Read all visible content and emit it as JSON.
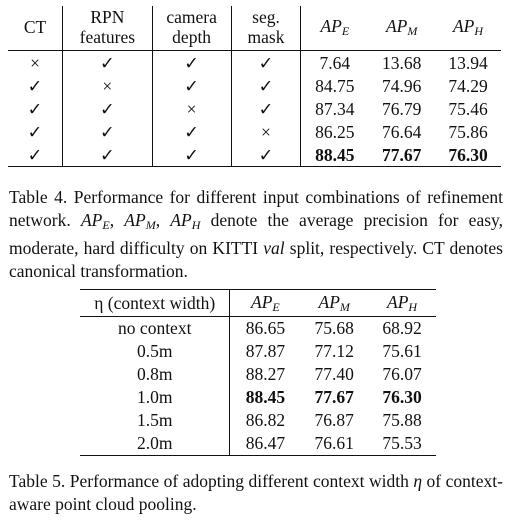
{
  "table4": {
    "headers": {
      "ct": "CT",
      "rpn_l1": "RPN",
      "rpn_l2": "features",
      "cam_l1": "camera",
      "cam_l2": "depth",
      "seg_l1": "seg.",
      "seg_l2": "mask",
      "ap_e": "AP",
      "ap_e_sub": "E",
      "ap_m": "AP",
      "ap_m_sub": "M",
      "ap_h": "AP",
      "ap_h_sub": "H"
    },
    "rows": [
      {
        "ct": "×",
        "rpn": "✓",
        "cam": "✓",
        "seg": "✓",
        "e": "7.64",
        "m": "13.68",
        "h": "13.94"
      },
      {
        "ct": "✓",
        "rpn": "×",
        "cam": "✓",
        "seg": "✓",
        "e": "84.75",
        "m": "74.96",
        "h": "74.29"
      },
      {
        "ct": "✓",
        "rpn": "✓",
        "cam": "×",
        "seg": "✓",
        "e": "87.34",
        "m": "76.79",
        "h": "75.46"
      },
      {
        "ct": "✓",
        "rpn": "✓",
        "cam": "✓",
        "seg": "×",
        "e": "86.25",
        "m": "76.64",
        "h": "75.86"
      },
      {
        "ct": "✓",
        "rpn": "✓",
        "cam": "✓",
        "seg": "✓",
        "e": "88.45",
        "m": "77.67",
        "h": "76.30"
      }
    ],
    "caption": {
      "p1": "Table 4. Performance for different input combinations of refinement network. ",
      "ap_list": "AP",
      "ap_e_sub": "E",
      "ap_m_sub": "M",
      "ap_h_sub": "H",
      "p2": " denote the average precision for easy, moderate, hard difficulty on KITTI ",
      "val": "val",
      "p3": " split, respectively. CT denotes canonical transformation."
    }
  },
  "table5": {
    "headers": {
      "eta": "η (context width)",
      "ap_e": "AP",
      "ap_e_sub": "E",
      "ap_m": "AP",
      "ap_m_sub": "M",
      "ap_h": "AP",
      "ap_h_sub": "H"
    },
    "rows": [
      {
        "w": "no context",
        "e": "86.65",
        "m": "75.68",
        "h": "68.92"
      },
      {
        "w": "0.5m",
        "e": "87.87",
        "m": "77.12",
        "h": "75.61"
      },
      {
        "w": "0.8m",
        "e": "88.27",
        "m": "77.40",
        "h": "76.07"
      },
      {
        "w": "1.0m",
        "e": "88.45",
        "m": "77.67",
        "h": "76.30"
      },
      {
        "w": "1.5m",
        "e": "86.82",
        "m": "76.87",
        "h": "75.88"
      },
      {
        "w": "2.0m",
        "e": "86.47",
        "m": "76.61",
        "h": "75.53"
      }
    ],
    "caption": {
      "p1": "Table 5. Performance of adopting different context width ",
      "eta": "η",
      "p2": " of context-aware point cloud pooling."
    }
  }
}
